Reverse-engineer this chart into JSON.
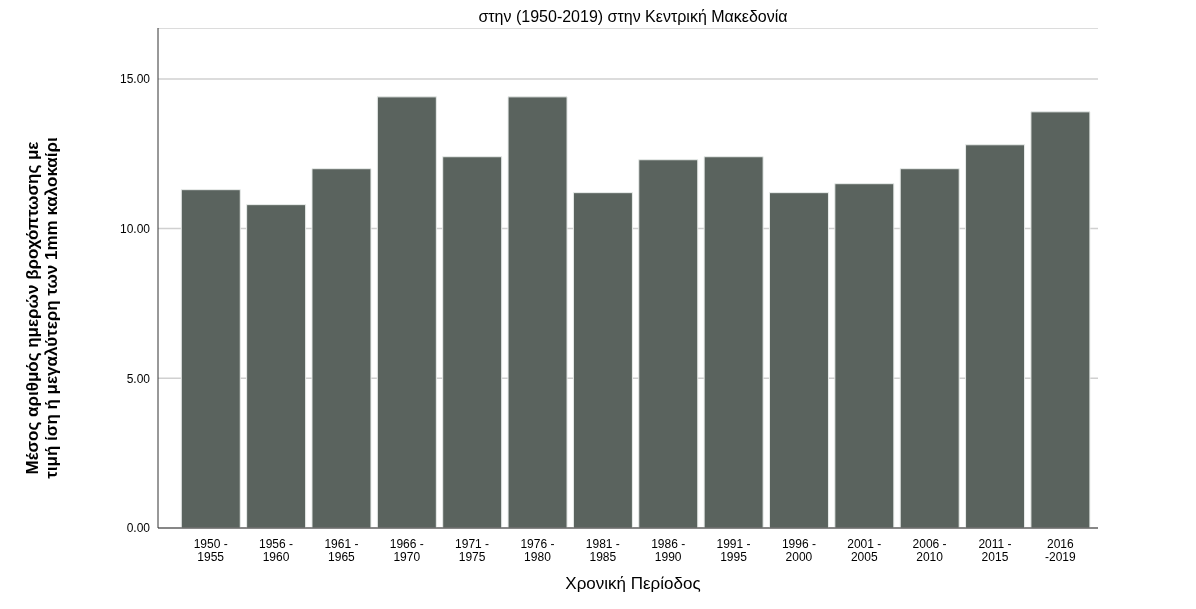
{
  "chart_data": {
    "type": "bar",
    "title": "στην (1950-2019) στην Κεντρική Μακεδονία",
    "xlabel": "Χρονική Περίοδος",
    "ylabel": "Μέσος αριθμός ημερών βροχόπτωσης με\nτιμή ίση ή μεγαλύτερη των 1mm  καλοκαίρι",
    "categories": [
      "1950 -\n1955",
      "1956 -\n1960",
      "1961 -\n1965",
      "1966 -\n1970",
      "1971 -\n1975",
      "1976 -\n1980",
      "1981 -\n1985",
      "1986 -\n1990",
      "1991 -\n1995",
      "1996 -\n2000",
      "2001 -\n2005",
      "2006 -\n2010",
      "2011 -\n2015",
      "2016\n-2019"
    ],
    "values": [
      11.3,
      10.8,
      12.0,
      14.4,
      12.4,
      14.4,
      11.2,
      12.3,
      12.4,
      11.2,
      11.5,
      12.0,
      12.8,
      13.9
    ],
    "color": "#5a635e",
    "ylim": [
      0,
      16.7
    ],
    "yticks": [
      {
        "value": 0,
        "label": "0.00"
      },
      {
        "value": 5,
        "label": "5.00"
      },
      {
        "value": 10,
        "label": "10.00"
      },
      {
        "value": 15,
        "label": "15.00"
      }
    ],
    "grid": "y"
  }
}
